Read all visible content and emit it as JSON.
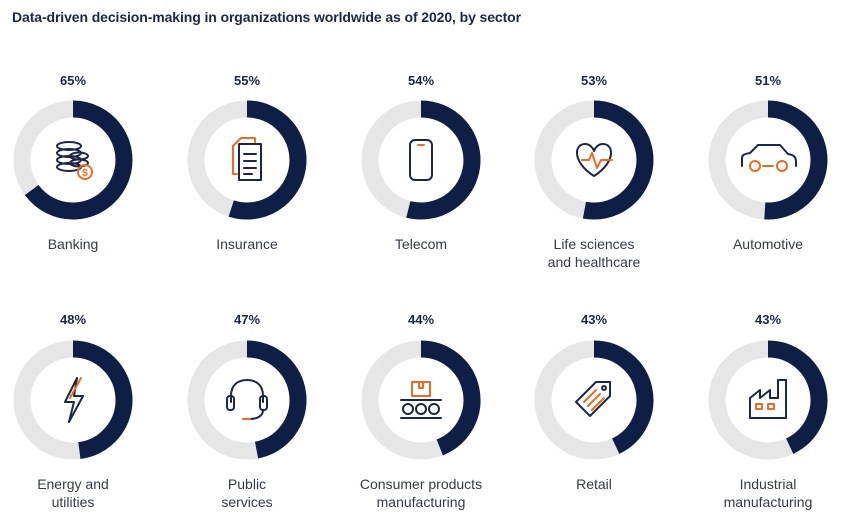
{
  "title": "Data-driven decision-making in organizations worldwide as of 2020, by sector",
  "colors": {
    "filled": "#0f1e44",
    "track": "#e6e6e6",
    "icon_dark": "#1c2745",
    "icon_accent": "#f26a21"
  },
  "chart_data": {
    "type": "donut",
    "unit": "%",
    "categories": [
      "Banking",
      "Insurance",
      "Telecom",
      "Life sciences and healthcare",
      "Automotive",
      "Energy and utilities",
      "Public services",
      "Consumer products manufacturing",
      "Retail",
      "Industrial manufacturing"
    ],
    "values": [
      65,
      55,
      54,
      53,
      51,
      48,
      47,
      44,
      43,
      43
    ],
    "items": [
      {
        "label_lines": [
          "Banking"
        ],
        "value": 65,
        "value_label": "65%",
        "icon": "coins-icon"
      },
      {
        "label_lines": [
          "Insurance"
        ],
        "value": 55,
        "value_label": "55%",
        "icon": "documents-icon"
      },
      {
        "label_lines": [
          "Telecom"
        ],
        "value": 54,
        "value_label": "54%",
        "icon": "phone-icon"
      },
      {
        "label_lines": [
          "Life sciences",
          "and healthcare"
        ],
        "value": 53,
        "value_label": "53%",
        "icon": "heartbeat-icon"
      },
      {
        "label_lines": [
          "Automotive"
        ],
        "value": 51,
        "value_label": "51%",
        "icon": "car-icon"
      },
      {
        "label_lines": [
          "Energy and",
          "utilities"
        ],
        "value": 48,
        "value_label": "48%",
        "icon": "lightning-icon"
      },
      {
        "label_lines": [
          "Public",
          "services"
        ],
        "value": 47,
        "value_label": "47%",
        "icon": "headset-icon"
      },
      {
        "label_lines": [
          "Consumer products",
          "manufacturing"
        ],
        "value": 44,
        "value_label": "44%",
        "icon": "conveyor-icon"
      },
      {
        "label_lines": [
          "Retail"
        ],
        "value": 43,
        "value_label": "43%",
        "icon": "price-tag-icon"
      },
      {
        "label_lines": [
          "Industrial",
          "manufacturing"
        ],
        "value": 43,
        "value_label": "43%",
        "icon": "factory-icon"
      }
    ]
  }
}
